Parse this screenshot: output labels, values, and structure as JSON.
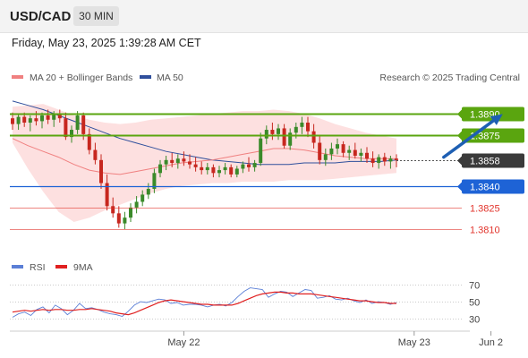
{
  "header": {
    "symbol": "USD/CAD",
    "timeframe": "30 MIN",
    "datetime": "Friday, May 23, 2025 1:39:28 AM CET",
    "source": "Research © 2025 Trading Central"
  },
  "colors": {
    "candle_up": "#3a8a2a",
    "candle_down": "#c7271f",
    "ma20": "#f08080",
    "bollinger_fill": "#fde0e0",
    "ma50": "#2f4f9c",
    "resistance": "#5aa50f",
    "support": "#1e63d6",
    "target": "#e2342c",
    "last_price": "#3a3a3a",
    "rsi": "#5b7fd6",
    "rsi_ma": "#e02020",
    "arrow": "#1e5fb3"
  },
  "chart_data": [
    {
      "type": "candlestick",
      "title": "USD/CAD",
      "legend": [
        {
          "label": "MA 20 + Bollinger Bands",
          "color": "#f08080"
        },
        {
          "label": "MA 50",
          "color": "#2f4f9c"
        }
      ],
      "legend_position": "top-left",
      "x_ticks": [
        {
          "label": "May 22",
          "index": 29
        },
        {
          "label": "May 23",
          "index": 68
        },
        {
          "label": "Jun 2",
          "index": 81
        }
      ],
      "ylim": [
        1.3792,
        1.3907
      ],
      "last_price": 1.3858,
      "price_levels": [
        {
          "label": "1.3890",
          "value": 1.389,
          "kind": "resistance",
          "extended": true
        },
        {
          "label": "1.3875",
          "value": 1.3875,
          "kind": "resistance",
          "extended": true
        },
        {
          "label": "1.3858",
          "value": 1.3858,
          "kind": "last",
          "extended": false
        },
        {
          "label": "1.3840",
          "value": 1.384,
          "kind": "support",
          "extended": true
        },
        {
          "label": "1.3825",
          "value": 1.3825,
          "kind": "target",
          "extended": false
        },
        {
          "label": "1.3810",
          "value": 1.381,
          "kind": "target",
          "extended": false
        }
      ],
      "arrow": {
        "from_index": 73,
        "from_value": 1.386,
        "to_index": 83,
        "to_value": 1.389
      },
      "candles": [
        [
          1.3887,
          1.3891,
          1.3879,
          1.3883
        ],
        [
          1.3883,
          1.389,
          1.3879,
          1.3888
        ],
        [
          1.3888,
          1.3891,
          1.3881,
          1.3884
        ],
        [
          1.3884,
          1.3889,
          1.3878,
          1.3887
        ],
        [
          1.3887,
          1.3892,
          1.3882,
          1.3885
        ],
        [
          1.3885,
          1.3891,
          1.388,
          1.3889
        ],
        [
          1.3889,
          1.3893,
          1.3883,
          1.3886
        ],
        [
          1.3886,
          1.3892,
          1.3881,
          1.389
        ],
        [
          1.389,
          1.3893,
          1.3884,
          1.3887
        ],
        [
          1.3887,
          1.3891,
          1.3872,
          1.3874
        ],
        [
          1.3874,
          1.3882,
          1.387,
          1.3879
        ],
        [
          1.3879,
          1.3892,
          1.3876,
          1.3889
        ],
        [
          1.3889,
          1.3891,
          1.3872,
          1.3876
        ],
        [
          1.3876,
          1.388,
          1.3862,
          1.3865
        ],
        [
          1.3865,
          1.387,
          1.3855,
          1.3858
        ],
        [
          1.3858,
          1.3862,
          1.3838,
          1.3842
        ],
        [
          1.3842,
          1.3848,
          1.3823,
          1.3826
        ],
        [
          1.3826,
          1.3832,
          1.3818,
          1.3821
        ],
        [
          1.3821,
          1.3826,
          1.3811,
          1.3814
        ],
        [
          1.3814,
          1.3822,
          1.381,
          1.3818
        ],
        [
          1.3818,
          1.3828,
          1.3815,
          1.3825
        ],
        [
          1.3825,
          1.3833,
          1.3821,
          1.3829
        ],
        [
          1.3829,
          1.3837,
          1.3826,
          1.3834
        ],
        [
          1.3834,
          1.3842,
          1.3831,
          1.3838
        ],
        [
          1.3838,
          1.3852,
          1.3835,
          1.3849
        ],
        [
          1.3849,
          1.3858,
          1.3846,
          1.3855
        ],
        [
          1.3855,
          1.3861,
          1.3851,
          1.3858
        ],
        [
          1.3858,
          1.3863,
          1.3853,
          1.3856
        ],
        [
          1.3856,
          1.3862,
          1.3852,
          1.3859
        ],
        [
          1.3859,
          1.3864,
          1.3854,
          1.3857
        ],
        [
          1.3857,
          1.3862,
          1.3852,
          1.3855
        ],
        [
          1.3855,
          1.386,
          1.385,
          1.3853
        ],
        [
          1.3853,
          1.3857,
          1.3848,
          1.3851
        ],
        [
          1.3851,
          1.3856,
          1.3848,
          1.3853
        ],
        [
          1.3853,
          1.3855,
          1.3846,
          1.3849
        ],
        [
          1.3849,
          1.3854,
          1.3846,
          1.3851
        ],
        [
          1.3851,
          1.3856,
          1.3848,
          1.3853
        ],
        [
          1.3853,
          1.3855,
          1.3846,
          1.3848
        ],
        [
          1.3848,
          1.3854,
          1.3846,
          1.3852
        ],
        [
          1.3852,
          1.3857,
          1.3849,
          1.3855
        ],
        [
          1.3855,
          1.386,
          1.385,
          1.3853
        ],
        [
          1.3853,
          1.3858,
          1.385,
          1.3856
        ],
        [
          1.3856,
          1.3877,
          1.3854,
          1.3873
        ],
        [
          1.3873,
          1.3882,
          1.3869,
          1.3879
        ],
        [
          1.3879,
          1.3884,
          1.3872,
          1.3876
        ],
        [
          1.3876,
          1.3883,
          1.3872,
          1.388
        ],
        [
          1.388,
          1.3883,
          1.3866,
          1.3868
        ],
        [
          1.3868,
          1.388,
          1.3865,
          1.3877
        ],
        [
          1.3877,
          1.3884,
          1.3873,
          1.3881
        ],
        [
          1.3881,
          1.3888,
          1.3876,
          1.3884
        ],
        [
          1.3884,
          1.3888,
          1.3874,
          1.3878
        ],
        [
          1.3878,
          1.3883,
          1.3866,
          1.387
        ],
        [
          1.387,
          1.3875,
          1.3855,
          1.3858
        ],
        [
          1.3858,
          1.3866,
          1.3854,
          1.3862
        ],
        [
          1.3862,
          1.387,
          1.3858,
          1.3866
        ],
        [
          1.3866,
          1.3873,
          1.3862,
          1.3869
        ],
        [
          1.3869,
          1.3871,
          1.386,
          1.3863
        ],
        [
          1.3863,
          1.3868,
          1.3858,
          1.3865
        ],
        [
          1.3865,
          1.387,
          1.3859,
          1.3861
        ],
        [
          1.3861,
          1.3866,
          1.3857,
          1.3863
        ],
        [
          1.3863,
          1.3867,
          1.3856,
          1.3859
        ],
        [
          1.3859,
          1.3864,
          1.3853,
          1.3856
        ],
        [
          1.3856,
          1.3862,
          1.3852,
          1.386
        ],
        [
          1.386,
          1.3863,
          1.3854,
          1.3857
        ],
        [
          1.3857,
          1.3861,
          1.3852,
          1.3859
        ],
        [
          1.3859,
          1.3862,
          1.3853,
          1.3858
        ]
      ],
      "ma20": [
        1.3873,
        1.3868,
        1.3864,
        1.386,
        1.3855,
        1.3851,
        1.3849,
        1.3848,
        1.385,
        1.3852,
        1.3854,
        1.3856,
        1.3857,
        1.3858,
        1.386,
        1.3862,
        1.3864,
        1.3866,
        1.3866,
        1.3865,
        1.3863,
        1.3861,
        1.386,
        1.3859,
        1.3859,
        1.3859
      ],
      "bb_upper": [
        1.3895,
        1.3896,
        1.3897,
        1.3893,
        1.3889,
        1.3886,
        1.3884,
        1.3883,
        1.3884,
        1.3886,
        1.3887,
        1.3888,
        1.3889,
        1.389,
        1.3891,
        1.3892,
        1.3892,
        1.3893,
        1.3892,
        1.389,
        1.3887,
        1.3883,
        1.388,
        1.3877,
        1.3875,
        1.3873
      ],
      "bb_lower": [
        1.387,
        1.3852,
        1.3836,
        1.3822,
        1.3815,
        1.3818,
        1.3823,
        1.3827,
        1.3831,
        1.3835,
        1.3838,
        1.384,
        1.3841,
        1.3842,
        1.3842,
        1.3843,
        1.3843,
        1.3843,
        1.3844,
        1.3844,
        1.3844,
        1.3845,
        1.3846,
        1.3847,
        1.3848,
        1.3849
      ],
      "ma50": [
        1.3899,
        1.3896,
        1.3893,
        1.3889,
        1.3885,
        1.3881,
        1.3877,
        1.3873,
        1.387,
        1.3867,
        1.3864,
        1.3862,
        1.386,
        1.3858,
        1.3857,
        1.3856,
        1.3855,
        1.3855,
        1.3855,
        1.3856,
        1.3856,
        1.3856,
        1.3857,
        1.3857,
        1.3857,
        1.3858
      ]
    },
    {
      "type": "line",
      "title": "RSI",
      "legend": [
        {
          "label": "RSI",
          "color": "#5b7fd6"
        },
        {
          "label": "9MA",
          "color": "#e02020"
        }
      ],
      "y_ticks": [
        70,
        50,
        30
      ],
      "ylim": [
        18,
        78
      ],
      "series": [
        {
          "name": "RSI",
          "values": [
            32,
            36,
            38,
            34,
            41,
            44,
            37,
            46,
            42,
            35,
            40,
            48,
            42,
            43,
            41,
            38,
            36,
            35,
            33,
            39,
            46,
            50,
            49,
            51,
            53,
            52,
            48,
            49,
            46,
            47,
            47,
            46,
            44,
            46,
            47,
            45,
            49,
            56,
            62,
            66,
            65,
            64,
            55,
            59,
            62,
            61,
            56,
            60,
            64,
            63,
            54,
            55,
            57,
            53,
            52,
            54,
            51,
            49,
            52,
            48,
            50,
            49,
            47,
            49
          ]
        },
        {
          "name": "9MA",
          "values": [
            38,
            39,
            40,
            39,
            40,
            41,
            40,
            41,
            41,
            40,
            40,
            41,
            41,
            42,
            41,
            40,
            39,
            37,
            36,
            35,
            37,
            40,
            43,
            46,
            49,
            51,
            52,
            51,
            50,
            49,
            48,
            47,
            47,
            46,
            46,
            46,
            46,
            48,
            51,
            54,
            57,
            59,
            60,
            61,
            61,
            60,
            60,
            59,
            59,
            59,
            58,
            57,
            56,
            55,
            54,
            53,
            52,
            51,
            51,
            50,
            49,
            49,
            48,
            48
          ]
        }
      ]
    }
  ]
}
